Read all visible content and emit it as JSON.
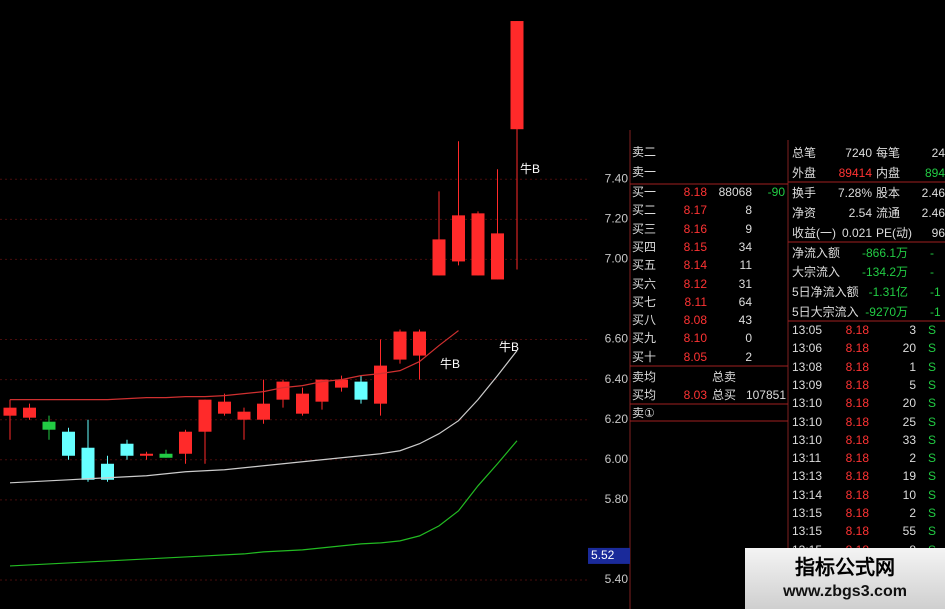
{
  "chart_data": {
    "type": "candlestick",
    "open": [
      6.22,
      6.26,
      6.19,
      6.14,
      6.06,
      5.98,
      6.08,
      6.02,
      6.03,
      6.03,
      6.14,
      6.29,
      6.2,
      6.2,
      6.3,
      6.33,
      6.29,
      6.36,
      6.39,
      6.28,
      6.5,
      6.52,
      6.92,
      6.99,
      6.92,
      6.9,
      7.65
    ],
    "high": [
      6.3,
      6.28,
      6.22,
      6.16,
      6.2,
      6.02,
      6.1,
      6.04,
      6.05,
      6.15,
      6.3,
      6.33,
      6.26,
      6.4,
      6.4,
      6.36,
      6.4,
      6.42,
      6.42,
      6.6,
      6.65,
      6.65,
      7.34,
      7.59,
      7.24,
      7.45,
      8.19
    ],
    "low": [
      6.1,
      6.2,
      6.1,
      6.0,
      5.89,
      5.89,
      6.0,
      6.0,
      6.01,
      5.98,
      5.98,
      6.22,
      6.1,
      6.18,
      6.26,
      6.22,
      6.25,
      6.34,
      6.28,
      6.22,
      6.48,
      6.4,
      6.92,
      6.97,
      6.92,
      6.9,
      6.95
    ],
    "close": [
      6.26,
      6.21,
      6.15,
      6.02,
      5.9,
      5.9,
      6.02,
      6.03,
      6.01,
      6.14,
      6.3,
      6.23,
      6.24,
      6.28,
      6.39,
      6.23,
      6.4,
      6.4,
      6.3,
      6.47,
      6.64,
      6.64,
      7.1,
      7.22,
      7.23,
      7.13,
      8.19
    ],
    "colors": [
      "#ff2a2a",
      "#ff2a2a",
      "#22cc44",
      "#66ffff",
      "#66ffff",
      "#66ffff",
      "#66ffff",
      "#ff2a2a",
      "#22cc44",
      "#ff2a2a",
      "#ff2a2a",
      "#ff2a2a",
      "#ff2a2a",
      "#ff2a2a",
      "#ff2a2a",
      "#ff2a2a",
      "#ff2a2a",
      "#ff2a2a",
      "#66ffff",
      "#ff2a2a",
      "#ff2a2a",
      "#ff2a2a",
      "#ff2a2a",
      "#ff2a2a",
      "#ff2a2a",
      "#ff2a2a",
      "#ff2a2a"
    ],
    "lines": [
      {
        "color": "#d03030",
        "values": [
          6.3,
          6.3,
          6.3,
          6.3,
          6.3,
          6.3,
          6.305,
          6.31,
          6.31,
          6.315,
          6.315,
          6.32,
          6.33,
          6.34,
          6.36,
          6.37,
          6.39,
          6.4,
          6.42,
          6.43,
          6.445,
          6.49,
          6.57,
          6.645,
          null,
          null,
          null
        ]
      },
      {
        "color": "#cccccc",
        "values": [
          5.885,
          5.89,
          5.895,
          5.9,
          5.905,
          5.91,
          5.915,
          5.92,
          5.93,
          5.94,
          5.945,
          5.95,
          5.96,
          5.97,
          5.98,
          5.99,
          6.0,
          6.01,
          6.02,
          6.03,
          6.045,
          6.08,
          6.13,
          6.195,
          6.3,
          6.42,
          6.545
        ]
      },
      {
        "color": "#22bb22",
        "values": [
          5.47,
          5.475,
          5.48,
          5.485,
          5.49,
          5.495,
          5.5,
          5.505,
          5.51,
          5.515,
          5.52,
          5.525,
          5.53,
          5.54,
          5.545,
          5.55,
          5.56,
          5.57,
          5.58,
          5.585,
          5.595,
          5.62,
          5.67,
          5.745,
          5.87,
          5.98,
          6.095
        ]
      }
    ],
    "ylim": [
      5.255,
      8.295
    ],
    "yticks": [
      {
        "value": 5.4,
        "label": "5.40"
      },
      {
        "value": 5.8,
        "label": "5.80"
      },
      {
        "value": 6.0,
        "label": "6.00"
      },
      {
        "value": 6.2,
        "label": "6.20"
      },
      {
        "value": 6.4,
        "label": "6.40"
      },
      {
        "value": 6.6,
        "label": "6.60"
      },
      {
        "value": 7.0,
        "label": "7.00"
      },
      {
        "value": 7.2,
        "label": "7.20"
      },
      {
        "value": 7.4,
        "label": "7.40"
      }
    ],
    "grid": true,
    "marker": {
      "value": 5.52,
      "label": "5.52"
    },
    "annotations": [
      "牛B",
      "牛B",
      "牛B"
    ]
  },
  "sell_labels": [
    "卖二",
    "卖一"
  ],
  "order_book": [
    [
      "买一",
      "8.18",
      "88068",
      "-90"
    ],
    [
      "买二",
      "8.17",
      "8",
      ""
    ],
    [
      "买三",
      "8.16",
      "9",
      ""
    ],
    [
      "买四",
      "8.15",
      "34",
      ""
    ],
    [
      "买五",
      "8.14",
      "11",
      ""
    ],
    [
      "买六",
      "8.12",
      "31",
      ""
    ],
    [
      "买七",
      "8.11",
      "64",
      ""
    ],
    [
      "买八",
      "8.08",
      "43",
      ""
    ],
    [
      "买九",
      "8.10",
      "0",
      ""
    ],
    [
      "买十",
      "8.05",
      "2",
      ""
    ]
  ],
  "summary": [
    [
      "卖均",
      "",
      "总卖",
      ""
    ],
    [
      "买均",
      "8.03",
      "总买",
      "107851"
    ],
    [
      "卖①",
      "",
      "",
      ""
    ]
  ],
  "stats": [
    [
      "总笔",
      "7240",
      "每笔",
      "24"
    ],
    [
      "外盘",
      "89414",
      "内盘",
      "894"
    ],
    [
      "换手",
      "7.28%",
      "股本",
      "2.46"
    ],
    [
      "净资",
      "2.54",
      "流通",
      "2.46"
    ],
    [
      "收益(一)",
      "0.021",
      "PE(动)",
      "96"
    ],
    [
      "净流入额",
      "-866.1万",
      "-",
      ""
    ],
    [
      "大宗流入",
      "-134.2万",
      "-",
      ""
    ],
    [
      "5日净流入额",
      "-1.31亿",
      "-1",
      ""
    ],
    [
      "5日大宗流入",
      "-9270万",
      "-1",
      ""
    ]
  ],
  "trades": [
    [
      "13:05",
      "8.18",
      "3",
      "S"
    ],
    [
      "13:06",
      "8.18",
      "20",
      "S"
    ],
    [
      "13:08",
      "8.18",
      "1",
      "S"
    ],
    [
      "13:09",
      "8.18",
      "5",
      "S"
    ],
    [
      "13:10",
      "8.18",
      "20",
      "S"
    ],
    [
      "13:10",
      "8.18",
      "25",
      "S"
    ],
    [
      "13:10",
      "8.18",
      "33",
      "S"
    ],
    [
      "13:11",
      "8.18",
      "2",
      "S"
    ],
    [
      "13:13",
      "8.18",
      "19",
      "S"
    ],
    [
      "13:14",
      "8.18",
      "10",
      "S"
    ],
    [
      "13:15",
      "8.18",
      "2",
      "S"
    ],
    [
      "13:15",
      "8.18",
      "55",
      "S"
    ],
    [
      "13:15",
      "8.18",
      "8",
      "S"
    ]
  ],
  "watermark": {
    "title": "指标公式网",
    "url": "www.zbgs3.com"
  }
}
